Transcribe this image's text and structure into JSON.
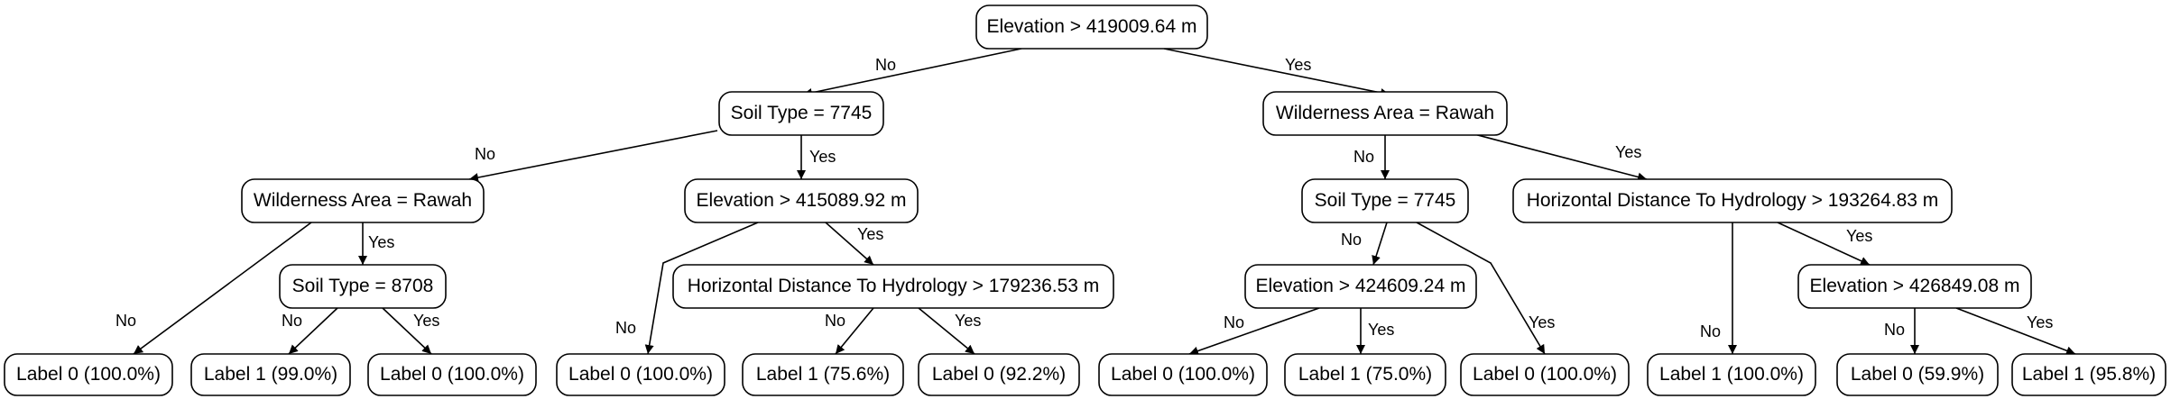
{
  "tree": {
    "nodes": {
      "n1": "Elevation > 419009.64 m",
      "n2": "Soil Type = 7745",
      "n3": "Wilderness Area = Rawah",
      "n4": "Wilderness Area = Rawah",
      "n5": "Elevation > 415089.92 m",
      "n6": "Soil Type = 7745",
      "n7": "Horizontal Distance To Hydrology > 193264.83 m",
      "n8": "Soil Type = 8708",
      "n9": "Horizontal Distance To Hydrology > 179236.53 m",
      "n10": "Elevation > 424609.24 m",
      "n11": "Elevation > 426849.08 m",
      "l1": "Label 0 (100.0%)",
      "l2": "Label 1 (99.0%)",
      "l3": "Label 0 (100.0%)",
      "l4": "Label 0 (100.0%)",
      "l5": "Label 1 (75.6%)",
      "l6": "Label 0 (92.2%)",
      "l7": "Label 0 (100.0%)",
      "l8": "Label 1 (75.0%)",
      "l9": "Label 0 (100.0%)",
      "l10": "Label 1 (100.0%)",
      "l11": "Label 0 (59.9%)",
      "l12": "Label 1 (95.8%)"
    },
    "edge_labels": {
      "no": "No",
      "yes": "Yes"
    }
  }
}
